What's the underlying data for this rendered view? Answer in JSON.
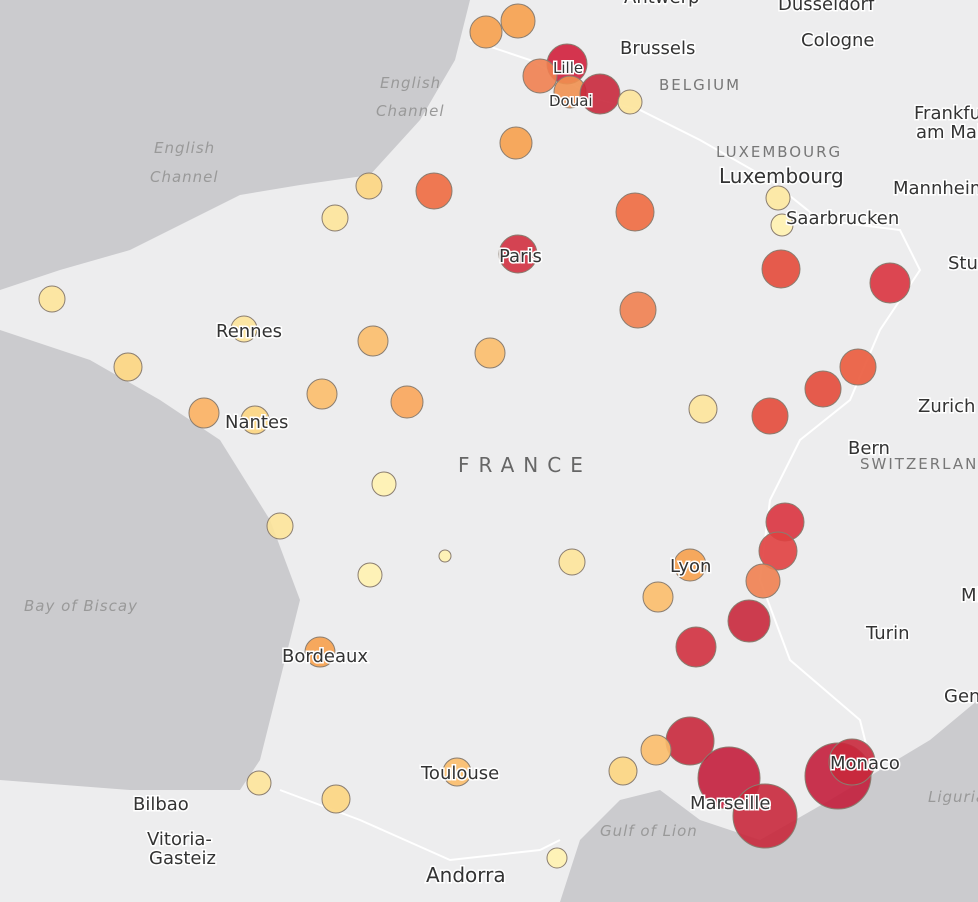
{
  "places": [
    "Antwerp",
    "Dusseldorf",
    "Brussels",
    "Cologne",
    "Lille",
    "Douai",
    "Frankfurt",
    "am Main",
    "Luxembourg",
    "Mannheim",
    "Saarbrucken",
    "Paris",
    "Stuttgart",
    "Rennes",
    "Nantes",
    "Zurich",
    "Bern",
    "Lyon",
    "Turin",
    "Bordeaux",
    "Toulouse",
    "Monaco",
    "Marseille",
    "Bilbao",
    "Vitoria-",
    "Gasteiz",
    "Andorra",
    "Genoa",
    "Milan"
  ],
  "countries": [
    "BELGIUM",
    "LUXEMBOURG",
    "FRANCE",
    "SWITZERLAND"
  ],
  "water_bodies": [
    "English",
    "Channel",
    "English",
    "Channel",
    "Bay of Biscay",
    "Gulf of Lion",
    "Ligurian"
  ]
}
